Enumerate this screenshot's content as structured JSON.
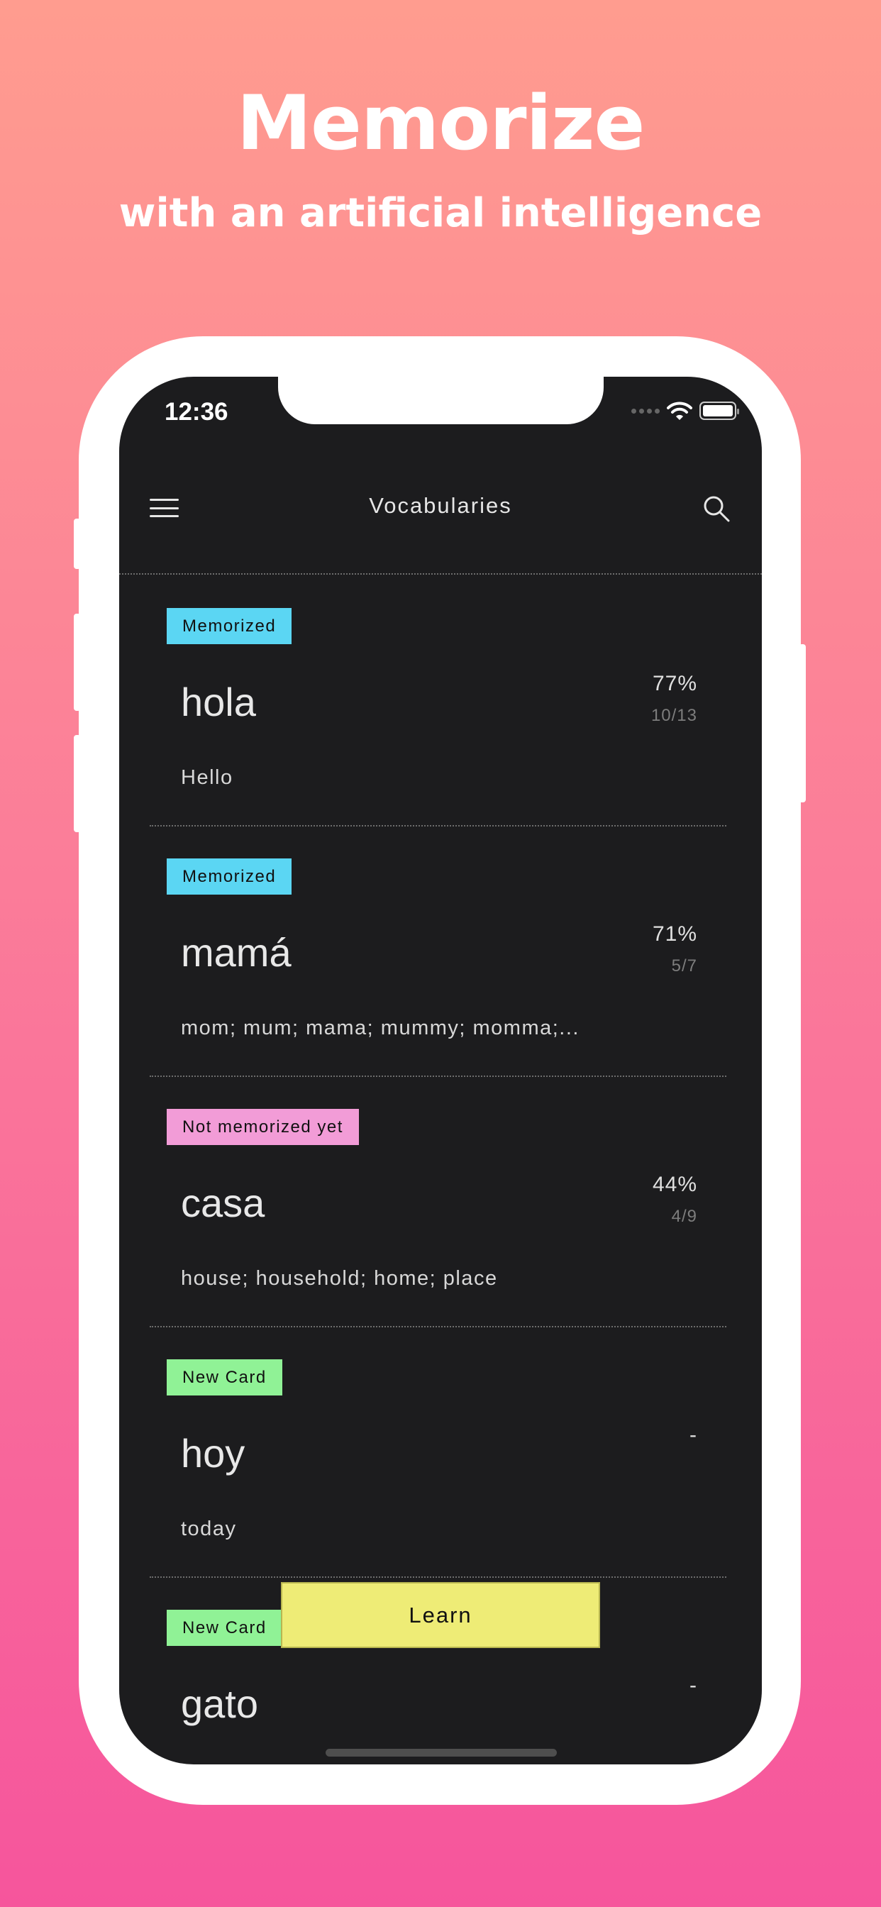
{
  "promo": {
    "title": "Memorize",
    "subtitle": "with an artificial intelligence"
  },
  "status_bar": {
    "time": "12:36"
  },
  "nav": {
    "title": "Vocabularies",
    "menu_icon": "hamburger-icon",
    "search_icon": "search-icon"
  },
  "items": [
    {
      "badge": "Memorized",
      "badge_color": "#5bd6f3",
      "word": "hola",
      "percent": "77%",
      "fraction": "10/13",
      "meaning": "Hello"
    },
    {
      "badge": "Memorized",
      "badge_color": "#5bd6f3",
      "word": "mamá",
      "percent": "71%",
      "fraction": "5/7",
      "meaning": "mom; mum; mama; mummy; momma;..."
    },
    {
      "badge": "Not memorized yet",
      "badge_color": "#f29cd7",
      "word": "casa",
      "percent": "44%",
      "fraction": "4/9",
      "meaning": "house; household; home; place"
    },
    {
      "badge": "New Card",
      "badge_color": "#90f296",
      "word": "hoy",
      "percent": "-",
      "fraction": "",
      "meaning": "today"
    },
    {
      "badge": "New Card",
      "badge_color": "#90f296",
      "word": "gato",
      "percent": "-",
      "fraction": "",
      "meaning": ""
    }
  ],
  "learn_button": {
    "label": "Learn",
    "color": "#eeec76"
  }
}
